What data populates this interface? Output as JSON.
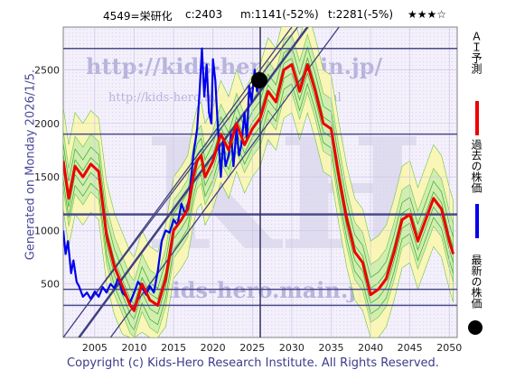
{
  "header": {
    "code_name": "4549=栄研化",
    "current": "c:2403",
    "mid": "m:1141(-52%)",
    "target": "t:2281(-5%)",
    "stars": "★★★☆"
  },
  "side_text": "Generated on Monday 2026/1/5.",
  "watermarks": {
    "url_top": "http://kids-hero.main.jp/",
    "url_mid": "http://kids-hero.main.jp/code4549.html",
    "big": "KH",
    "url_bottom": "@kids-hero.main.jp"
  },
  "legend": {
    "ai_forecast": "ＡＩ予測",
    "past_price": "過去の株価",
    "latest_price": "最新の株価",
    "colors": {
      "ai": "#ee0000",
      "past": "#0000ee",
      "latest": "#000000"
    }
  },
  "footer": "Copyright (c) Kids-Hero Research Institute. All Rights Reserved.",
  "chart_data": {
    "type": "line",
    "xlim": [
      2001,
      2051
    ],
    "ylim": [
      0,
      2900
    ],
    "x_ticks": [
      2005,
      2010,
      2015,
      2020,
      2025,
      2030,
      2035,
      2040,
      2045,
      2050
    ],
    "y_ticks": [
      500,
      1000,
      1500,
      2000,
      2500
    ],
    "horizontal_levels": [
      300,
      450,
      1150,
      1900,
      2700
    ],
    "current_x": 2026,
    "latest_point": {
      "x": 2026,
      "y": 2403
    },
    "series": [
      {
        "name": "過去の株価",
        "color": "#0000ee",
        "points": [
          [
            2001.0,
            1000
          ],
          [
            2001.3,
            780
          ],
          [
            2001.6,
            900
          ],
          [
            2002.0,
            600
          ],
          [
            2002.3,
            720
          ],
          [
            2002.7,
            520
          ],
          [
            2003.0,
            480
          ],
          [
            2003.5,
            380
          ],
          [
            2004.0,
            420
          ],
          [
            2004.5,
            360
          ],
          [
            2005.0,
            430
          ],
          [
            2005.5,
            380
          ],
          [
            2006.0,
            470
          ],
          [
            2006.5,
            420
          ],
          [
            2007.0,
            500
          ],
          [
            2007.5,
            460
          ],
          [
            2008.0,
            560
          ],
          [
            2008.5,
            420
          ],
          [
            2009.0,
            380
          ],
          [
            2009.5,
            330
          ],
          [
            2010.0,
            420
          ],
          [
            2010.5,
            520
          ],
          [
            2011.0,
            470
          ],
          [
            2011.5,
            400
          ],
          [
            2012.0,
            480
          ],
          [
            2012.5,
            420
          ],
          [
            2013.0,
            620
          ],
          [
            2013.5,
            900
          ],
          [
            2014.0,
            1000
          ],
          [
            2014.5,
            980
          ],
          [
            2015.0,
            1100
          ],
          [
            2015.5,
            1050
          ],
          [
            2016.0,
            1250
          ],
          [
            2016.5,
            1150
          ],
          [
            2017.0,
            1300
          ],
          [
            2017.5,
            1700
          ],
          [
            2018.0,
            1950
          ],
          [
            2018.3,
            2300
          ],
          [
            2018.6,
            2700
          ],
          [
            2018.9,
            2250
          ],
          [
            2019.2,
            2550
          ],
          [
            2019.5,
            2100
          ],
          [
            2019.8,
            2000
          ],
          [
            2020.0,
            2600
          ],
          [
            2020.3,
            2400
          ],
          [
            2020.6,
            2000
          ],
          [
            2021.0,
            1500
          ],
          [
            2021.3,
            1850
          ],
          [
            2021.6,
            1600
          ],
          [
            2022.0,
            1700
          ],
          [
            2022.3,
            1900
          ],
          [
            2022.6,
            1600
          ],
          [
            2023.0,
            1950
          ],
          [
            2023.3,
            1700
          ],
          [
            2023.6,
            1800
          ],
          [
            2024.0,
            2100
          ],
          [
            2024.3,
            1850
          ],
          [
            2024.6,
            2350
          ],
          [
            2024.9,
            2200
          ],
          [
            2025.3,
            2500
          ],
          [
            2025.6,
            2300
          ],
          [
            2026.0,
            2403
          ]
        ]
      },
      {
        "name": "ＡＩ予測",
        "color": "#ee0000",
        "points": [
          [
            2001.0,
            1650
          ],
          [
            2001.7,
            1300
          ],
          [
            2002.5,
            1600
          ],
          [
            2003.5,
            1500
          ],
          [
            2004.5,
            1620
          ],
          [
            2005.5,
            1550
          ],
          [
            2006.5,
            950
          ],
          [
            2007.5,
            660
          ],
          [
            2008.5,
            480
          ],
          [
            2009.5,
            300
          ],
          [
            2010.0,
            250
          ],
          [
            2011.0,
            500
          ],
          [
            2012.0,
            350
          ],
          [
            2013.0,
            300
          ],
          [
            2014.0,
            550
          ],
          [
            2015.0,
            1000
          ],
          [
            2016.0,
            1100
          ],
          [
            2016.8,
            1200
          ],
          [
            2017.5,
            1500
          ],
          [
            2018.0,
            1650
          ],
          [
            2018.5,
            1700
          ],
          [
            2019.0,
            1500
          ],
          [
            2020.0,
            1650
          ],
          [
            2021.0,
            1900
          ],
          [
            2022.0,
            1750
          ],
          [
            2023.0,
            2000
          ],
          [
            2024.0,
            1800
          ],
          [
            2025.0,
            1950
          ],
          [
            2026.0,
            2050
          ],
          [
            2027.0,
            2300
          ],
          [
            2028.0,
            2200
          ],
          [
            2029.0,
            2500
          ],
          [
            2030.0,
            2550
          ],
          [
            2031.0,
            2300
          ],
          [
            2032.0,
            2550
          ],
          [
            2033.0,
            2300
          ],
          [
            2034.0,
            2000
          ],
          [
            2035.0,
            1950
          ],
          [
            2036.0,
            1500
          ],
          [
            2037.0,
            1100
          ],
          [
            2038.0,
            800
          ],
          [
            2039.0,
            700
          ],
          [
            2040.0,
            400
          ],
          [
            2041.0,
            450
          ],
          [
            2042.0,
            550
          ],
          [
            2043.0,
            800
          ],
          [
            2044.0,
            1100
          ],
          [
            2045.0,
            1150
          ],
          [
            2046.0,
            900
          ],
          [
            2047.0,
            1100
          ],
          [
            2048.0,
            1300
          ],
          [
            2049.0,
            1200
          ],
          [
            2050.0,
            900
          ],
          [
            2050.5,
            780
          ]
        ]
      }
    ]
  }
}
